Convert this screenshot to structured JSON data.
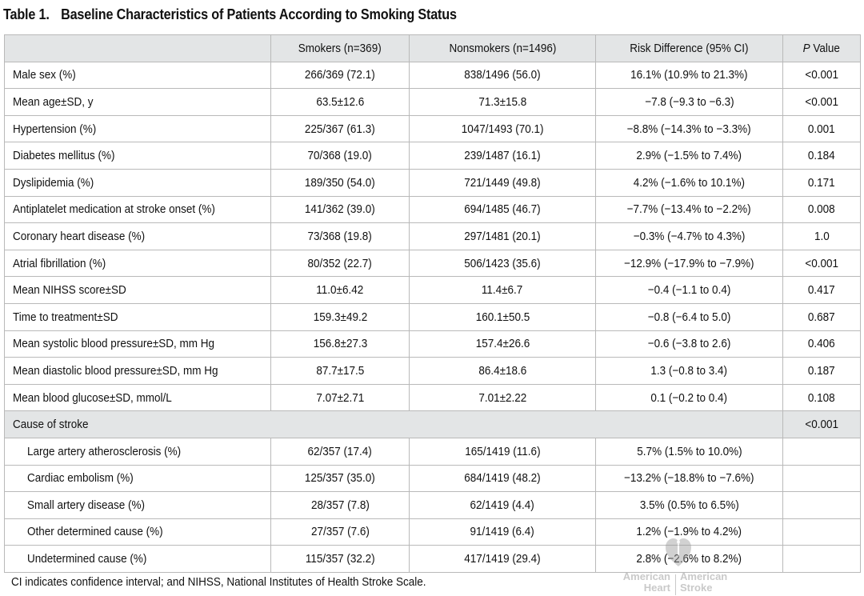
{
  "caption": {
    "number": "Table 1.",
    "title": "Baseline Characteristics of Patients According to Smoking Status"
  },
  "table": {
    "headers": {
      "label": "",
      "smokers": "Smokers (n=369)",
      "nonsmokers": "Nonsmokers (n=1496)",
      "risk_diff": "Risk Difference (95% CI)",
      "p_prefix": "P",
      "p_suffix": "Value"
    },
    "rows": [
      {
        "label": "Male sex (%)",
        "smokers": "266/369 (72.1)",
        "nonsmokers": "838/1496 (56.0)",
        "risk_diff": "16.1% (10.9% to 21.3%)",
        "p": "<0.001"
      },
      {
        "label": "Mean age±SD, y",
        "smokers": "63.5±12.6",
        "nonsmokers": "71.3±15.8",
        "risk_diff": "−7.8 (−9.3 to −6.3)",
        "p": "<0.001"
      },
      {
        "label": "Hypertension (%)",
        "smokers": "225/367 (61.3)",
        "nonsmokers": "1047/1493 (70.1)",
        "risk_diff": "−8.8% (−14.3% to −3.3%)",
        "p": "0.001"
      },
      {
        "label": "Diabetes mellitus (%)",
        "smokers": "70/368 (19.0)",
        "nonsmokers": "239/1487 (16.1)",
        "risk_diff": "2.9% (−1.5% to 7.4%)",
        "p": "0.184"
      },
      {
        "label": "Dyslipidemia (%)",
        "smokers": "189/350 (54.0)",
        "nonsmokers": "721/1449 (49.8)",
        "risk_diff": "4.2% (−1.6% to 10.1%)",
        "p": "0.171"
      },
      {
        "label": "Antiplatelet medication at stroke onset (%)",
        "smokers": "141/362 (39.0)",
        "nonsmokers": "694/1485 (46.7)",
        "risk_diff": "−7.7% (−13.4% to −2.2%)",
        "p": "0.008"
      },
      {
        "label": "Coronary heart disease (%)",
        "smokers": "73/368 (19.8)",
        "nonsmokers": "297/1481 (20.1)",
        "risk_diff": "−0.3% (−4.7% to 4.3%)",
        "p": "1.0"
      },
      {
        "label": "Atrial fibrillation (%)",
        "smokers": "80/352 (22.7)",
        "nonsmokers": "506/1423 (35.6)",
        "risk_diff": "−12.9% (−17.9% to −7.9%)",
        "p": "<0.001"
      },
      {
        "label": "Mean NIHSS score±SD",
        "smokers": "11.0±6.42",
        "nonsmokers": "11.4±6.7",
        "risk_diff": "−0.4 (−1.1 to 0.4)",
        "p": "0.417"
      },
      {
        "label": "Time to treatment±SD",
        "smokers": "159.3±49.2",
        "nonsmokers": "160.1±50.5",
        "risk_diff": "−0.8 (−6.4 to 5.0)",
        "p": "0.687"
      },
      {
        "label": "Mean systolic blood pressure±SD, mm Hg",
        "smokers": "156.8±27.3",
        "nonsmokers": "157.4±26.6",
        "risk_diff": "−0.6 (−3.8 to 2.6)",
        "p": "0.406"
      },
      {
        "label": "Mean diastolic blood pressure±SD, mm Hg",
        "smokers": "87.7±17.5",
        "nonsmokers": "86.4±18.6",
        "risk_diff": "1.3 (−0.8 to 3.4)",
        "p": "0.187"
      },
      {
        "label": "Mean blood glucose±SD, mmol/L",
        "smokers": "7.07±2.71",
        "nonsmokers": "7.01±2.22",
        "risk_diff": "0.1 (−0.2 to 0.4)",
        "p": "0.108"
      }
    ],
    "section": {
      "label": "Cause of stroke",
      "p": "<0.001"
    },
    "subrows": [
      {
        "label": "Large artery atherosclerosis (%)",
        "smokers": "62/357 (17.4)",
        "nonsmokers": "165/1419 (11.6)",
        "risk_diff": "5.7% (1.5% to 10.0%)",
        "p": ""
      },
      {
        "label": "Cardiac embolism (%)",
        "smokers": "125/357 (35.0)",
        "nonsmokers": "684/1419 (48.2)",
        "risk_diff": "−13.2% (−18.8% to −7.6%)",
        "p": ""
      },
      {
        "label": "Small artery disease (%)",
        "smokers": "28/357 (7.8)",
        "nonsmokers": "62/1419 (4.4)",
        "risk_diff": "3.5% (0.5% to 6.5%)",
        "p": ""
      },
      {
        "label": "Other determined cause (%)",
        "smokers": "27/357 (7.6)",
        "nonsmokers": "91/1419 (6.4)",
        "risk_diff": "1.2% (−1.9% to 4.2%)",
        "p": ""
      },
      {
        "label": "Undetermined cause (%)",
        "smokers": "115/357 (32.2)",
        "nonsmokers": "417/1419 (29.4)",
        "risk_diff": "2.8% (−2.6% to 8.2%)",
        "p": ""
      }
    ]
  },
  "footnote": "CI indicates confidence interval; and NIHSS, National Institutes of Health Stroke Scale.",
  "watermark": {
    "left_line1": "American",
    "left_line2": "Heart",
    "right_line1": "American",
    "right_line2": "Stroke",
    "icon": "heart-torch-icon"
  }
}
